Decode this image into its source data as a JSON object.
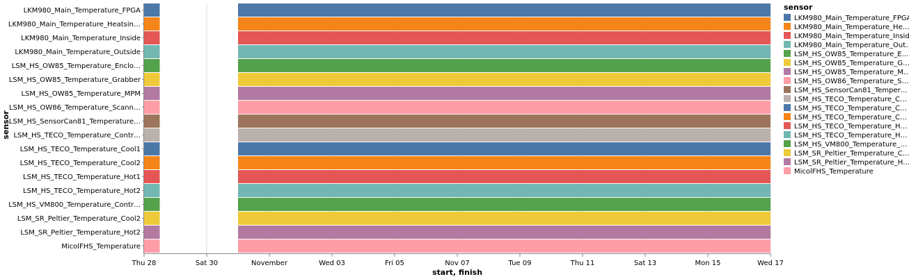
{
  "chart_data": {
    "type": "gantt",
    "xlabel": "start, finish",
    "ylabel": "sensor",
    "x_ticks": [
      "Thu 28",
      "Sat 30",
      "November",
      "Wed 03",
      "Fri 05",
      "Nov 07",
      "Tue 09",
      "Thu 11",
      "Sat 13",
      "Mon 15",
      "Wed 17"
    ],
    "x_tick_dates": [
      "2021-10-28",
      "2021-10-30",
      "2021-11-01",
      "2021-11-03",
      "2021-11-05",
      "2021-11-07",
      "2021-11-09",
      "2021-11-11",
      "2021-11-13",
      "2021-11-15",
      "2021-11-17"
    ],
    "xlim": [
      "2021-10-28",
      "2021-11-17"
    ],
    "legend_title": "sensor",
    "legend_position": "right",
    "sensors": [
      "LKM980_Main_Temperature_FPGA",
      "LKM980_Main_Temperature_Heatsin…",
      "LKM980_Main_Temperature_Inside",
      "LKM980_Main_Temperature_Outside",
      "LSM_HS_OW85_Temperature_Enclo…",
      "LSM_HS_OW85_Temperature_Grabber",
      "LSM_HS_OW85_Temperature_MPM",
      "LSM_HS_OW86_Temperature_Scann…",
      "LSM_HS_SensorCan81_Temperature…",
      "LSM_HS_TECO_Temperature_Contr…",
      "LSM_HS_TECO_Temperature_Cool1",
      "LSM_HS_TECO_Temperature_Cool2",
      "LSM_HS_TECO_Temperature_Hot1",
      "LSM_HS_TECO_Temperature_Hot2",
      "LSM_HS_VM800_Temperature_Contr…",
      "LSM_SR_Peltier_Temperature_Cool2",
      "LSM_SR_Peltier_Temperature_Hot2",
      "MicolFHS_Temperature"
    ],
    "legend_labels": [
      "LKM980_Main_Temperature_FPGA",
      "LKM980_Main_Temperature_He…",
      "LKM980_Main_Temperature_Inside",
      "LKM980_Main_Temperature_Out…",
      "LSM_HS_OW85_Temperature_E…",
      "LSM_HS_OW85_Temperature_G…",
      "LSM_HS_OW85_Temperature_M…",
      "LSM_HS_OW86_Temperature_S…",
      "LSM_HS_SensorCan81_Temper…",
      "LSM_HS_TECO_Temperature_C…",
      "LSM_HS_TECO_Temperature_C…",
      "LSM_HS_TECO_Temperature_C…",
      "LSM_HS_TECO_Temperature_H…",
      "LSM_HS_TECO_Temperature_H…",
      "LSM_HS_VM800_Temperature_…",
      "LSM_SR_Peltier_Temperature_C…",
      "LSM_SR_Peltier_Temperature_H…",
      "MicolFHS_Temperature"
    ],
    "colors": [
      "#4c78a8",
      "#f58518",
      "#e45756",
      "#72b7b2",
      "#54a24b",
      "#eeca3b",
      "#b279a2",
      "#ff9da6",
      "#9d755d",
      "#bab0ac",
      "#4c78a8",
      "#f58518",
      "#e45756",
      "#72b7b2",
      "#54a24b",
      "#eeca3b",
      "#b279a2",
      "#ff9da6"
    ],
    "intervals": [
      {
        "start": "2021-10-28",
        "finish": "2021-10-28T12:00"
      },
      {
        "start": "2021-10-31",
        "finish": "2021-11-17"
      }
    ]
  }
}
